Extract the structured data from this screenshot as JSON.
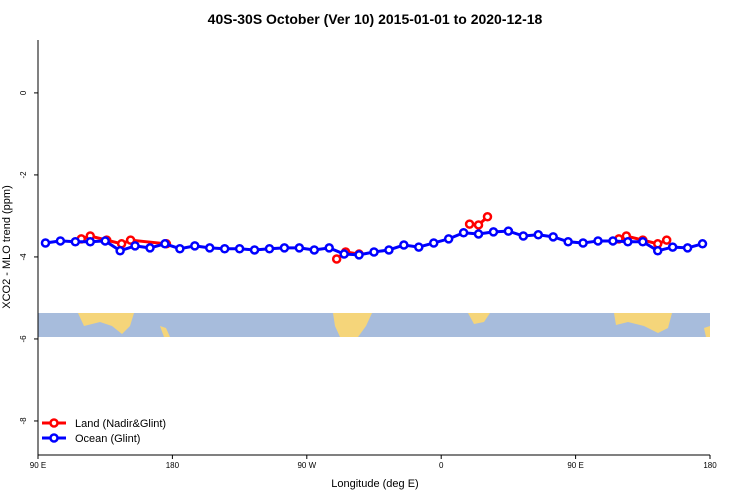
{
  "chart_data": {
    "type": "line",
    "title": "40S-30S October (Ver 10)   2015-01-01 to 2020-12-18",
    "xlabel": "Longitude (deg E)",
    "ylabel": "XCO2 - MLO trend (ppm)",
    "xlim": [
      90,
      540
    ],
    "xticks": [
      {
        "value": 90,
        "label": "90 E"
      },
      {
        "value": 180,
        "label": "180"
      },
      {
        "value": 270,
        "label": "90 W"
      },
      {
        "value": 360,
        "label": "0"
      },
      {
        "value": 450,
        "label": "90 E"
      },
      {
        "value": 540,
        "label": "180"
      }
    ],
    "ylim": [
      -8.83,
      1.29
    ],
    "yticks": [
      0,
      -2,
      -4,
      -6,
      -8
    ],
    "legend": "bottom-left",
    "series": [
      {
        "name": "Land (Nadir&Glint)",
        "color": "#ff0000",
        "x": [
          119,
          125,
          136,
          146,
          152,
          176,
          200,
          290,
          296,
          305,
          340,
          379,
          385,
          391,
          440,
          479,
          484,
          495,
          505,
          511
        ],
        "values": [
          -3.56,
          -3.49,
          -3.59,
          -3.68,
          -3.59,
          -3.68,
          null,
          -4.05,
          -3.88,
          -3.93,
          null,
          -3.2,
          -3.22,
          -3.02,
          null,
          -3.56,
          -3.49,
          -3.59,
          -3.68,
          -3.59
        ]
      },
      {
        "name": "Ocean (Glint)",
        "color": "#0000ff",
        "x": [
          95,
          105,
          115,
          125,
          135,
          145,
          155,
          165,
          175,
          185,
          195,
          205,
          215,
          225,
          235,
          245,
          255,
          265,
          275,
          285,
          295,
          305,
          315,
          325,
          335,
          345,
          355,
          365,
          375,
          385,
          395,
          405,
          415,
          425,
          435,
          445,
          455,
          465,
          475,
          485,
          495,
          505,
          515,
          525,
          535
        ],
        "values": [
          -3.66,
          -3.61,
          -3.63,
          -3.63,
          -3.61,
          -3.85,
          -3.73,
          -3.78,
          -3.68,
          -3.8,
          -3.73,
          -3.78,
          -3.8,
          -3.8,
          -3.83,
          -3.8,
          -3.78,
          -3.78,
          -3.83,
          -3.78,
          -3.93,
          -3.95,
          -3.88,
          -3.83,
          -3.71,
          -3.76,
          -3.66,
          -3.56,
          -3.41,
          -3.44,
          -3.39,
          -3.37,
          -3.49,
          -3.46,
          -3.51,
          -3.63,
          -3.66,
          -3.61,
          -3.61,
          -3.63,
          -3.63,
          -3.85,
          -3.76,
          -3.78,
          -3.68
        ]
      }
    ]
  }
}
